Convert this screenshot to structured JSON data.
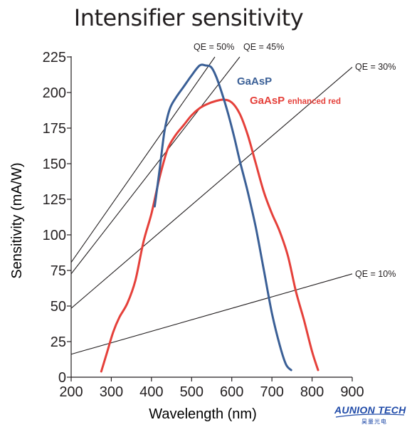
{
  "chart_data": {
    "type": "line",
    "title": "Intensifier sensitivity",
    "xlabel": "Wavelength (nm)",
    "ylabel": "Sensitivity (mA/W)",
    "xlim": [
      200,
      900
    ],
    "ylim": [
      0,
      225
    ],
    "xticks": [
      "200",
      "300",
      "400",
      "500",
      "600",
      "700",
      "800",
      "900"
    ],
    "yticks": [
      "0",
      "25",
      "50",
      "75",
      "100",
      "125",
      "150",
      "175",
      "200",
      "225"
    ],
    "grid": false,
    "series": [
      {
        "name": "GaAsP",
        "label_html": "GaAsP",
        "color": "#3a5f96",
        "x": [
          408,
          420,
          432,
          445,
          460,
          480,
          500,
          520,
          535,
          548,
          560,
          575,
          590,
          605,
          620,
          640,
          660,
          680,
          700,
          720,
          735,
          748
        ],
        "y": [
          120,
          145,
          172,
          188,
          196,
          204,
          212,
          219,
          219,
          218,
          212,
          200,
          186,
          170,
          152,
          130,
          105,
          75,
          45,
          22,
          9,
          5
        ]
      },
      {
        "name": "GaAsP enhanced red",
        "label_html": "GaAsP",
        "label_suffix": "enhanced red",
        "color": "#e5403a",
        "x": [
          275,
          290,
          305,
          320,
          340,
          360,
          380,
          400,
          420,
          440,
          460,
          480,
          500,
          520,
          540,
          560,
          580,
          600,
          620,
          640,
          660,
          680,
          700,
          720,
          740,
          760,
          780,
          800,
          815
        ],
        "y": [
          4,
          18,
          32,
          42,
          52,
          68,
          95,
          115,
          140,
          160,
          170,
          177,
          184,
          189,
          192,
          194,
          195,
          193,
          185,
          170,
          150,
          130,
          115,
          102,
          85,
          60,
          40,
          18,
          5
        ]
      }
    ],
    "reference_lines": [
      {
        "label": "QE = 50%",
        "qe": 0.5
      },
      {
        "label": "QE = 45%",
        "qe": 0.45
      },
      {
        "label": "QE = 30%",
        "qe": 0.3
      },
      {
        "label": "QE = 10%",
        "qe": 0.1
      }
    ]
  },
  "branding": {
    "logo_text": "AUNION TECH",
    "logo_subtext": "昊量光电"
  }
}
